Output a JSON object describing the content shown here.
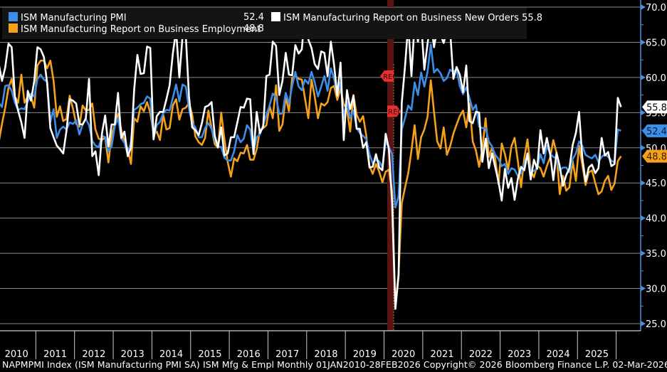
{
  "chart_data": {
    "type": "line",
    "title": "",
    "xlabel": "",
    "ylabel": "",
    "x_start": "2010-01",
    "x_end": "2026-02",
    "frequency": "monthly",
    "ylim": [
      25.0,
      70.0
    ],
    "yticks": [
      "70.0",
      "65.0",
      "60.0",
      "55.0",
      "50.0",
      "45.0",
      "40.0",
      "35.0",
      "30.0",
      "25.0"
    ],
    "xtick_labels": [
      "2010",
      "2011",
      "2012",
      "2013",
      "2014",
      "2015",
      "2016",
      "2017",
      "2018",
      "2019",
      "2020",
      "2021",
      "2022",
      "2023",
      "2024",
      "2025"
    ],
    "grid": true,
    "legend_position": "top-left",
    "recession_band": {
      "start": "2020-02",
      "end": "2020-04",
      "label": "REC"
    },
    "series": [
      {
        "name": "ISM Manufacturing PMI",
        "last_value": "52.4",
        "color": "#3d8ee8",
        "values": [
          56.4,
          55.8,
          58.8,
          58.9,
          58.1,
          56.4,
          55.4,
          55.6,
          55.5,
          56.6,
          57.7,
          57.3,
          59.8,
          60.4,
          59.7,
          59.4,
          53.7,
          55.5,
          51.4,
          52.6,
          53.0,
          52.6,
          53.6,
          53.4,
          53.9,
          51.9,
          53.3,
          54.1,
          53.2,
          51.0,
          50.3,
          50.1,
          51.7,
          51.5,
          49.5,
          50.2,
          53.1,
          54.2,
          51.3,
          50.7,
          49.0,
          50.9,
          55.4,
          55.7,
          56.2,
          56.4,
          57.3,
          57.0,
          51.3,
          53.2,
          53.7,
          54.9,
          55.4,
          55.3,
          57.1,
          59.0,
          56.6,
          59.0,
          58.7,
          55.5,
          53.5,
          52.9,
          51.5,
          51.5,
          52.8,
          53.5,
          52.7,
          51.1,
          50.2,
          50.1,
          48.6,
          48.2,
          48.2,
          49.5,
          51.8,
          50.8,
          51.3,
          53.2,
          52.6,
          49.4,
          51.5,
          51.9,
          53.2,
          54.7,
          56.0,
          57.7,
          57.2,
          54.8,
          54.9,
          57.8,
          56.3,
          58.8,
          60.8,
          58.7,
          58.2,
          59.7,
          59.1,
          60.8,
          59.3,
          57.3,
          58.7,
          60.2,
          58.1,
          61.3,
          59.8,
          57.7,
          59.3,
          54.3,
          56.6,
          54.2,
          55.3,
          52.8,
          52.1,
          51.7,
          51.2,
          49.1,
          47.8,
          48.3,
          48.1,
          47.2,
          50.9,
          50.1,
          49.1,
          41.5,
          43.1,
          52.6,
          54.2,
          56.0,
          55.4,
          59.3,
          57.5,
          60.7,
          58.7,
          60.8,
          64.7,
          60.7,
          61.2,
          60.6,
          59.5,
          59.9,
          61.1,
          60.8,
          61.1,
          58.8,
          57.6,
          58.6,
          57.1,
          55.4,
          56.1,
          53.0,
          52.8,
          52.8,
          50.9,
          50.2,
          49.0,
          48.4,
          47.4,
          47.7,
          46.3,
          47.1,
          46.9,
          46.0,
          46.4,
          47.6,
          49.0,
          46.7,
          46.7,
          47.1,
          49.1,
          47.8,
          50.3,
          49.2,
          48.7,
          48.5,
          46.8,
          47.2,
          47.2,
          46.5,
          48.4,
          49.2,
          50.9,
          50.3,
          49.0,
          48.7,
          48.5,
          49.0,
          48.0,
          48.7,
          49.1,
          48.7,
          48.2,
          47.9,
          52.6,
          52.4
        ]
      },
      {
        "name": "ISM Manufacturing Report on Business New Orders",
        "last_value": "55.8",
        "color": "#ffffff",
        "values": [
          61.9,
          59.5,
          61.4,
          64.8,
          64.3,
          57.3,
          55.3,
          53.6,
          51.4,
          58.1,
          56.7,
          59.5,
          64.3,
          64.0,
          62.9,
          59.2,
          52.8,
          51.5,
          50.3,
          49.8,
          49.2,
          52.4,
          56.9,
          56.7,
          56.3,
          53.4,
          53.3,
          54.2,
          59.8,
          48.8,
          49.5,
          46.1,
          52.0,
          54.6,
          50.2,
          53.3,
          53.3,
          57.8,
          51.4,
          52.3,
          48.8,
          50.0,
          58.3,
          63.2,
          60.5,
          60.6,
          64.4,
          64.2,
          51.2,
          54.5,
          55.1,
          55.1,
          56.9,
          58.9,
          63.4,
          66.7,
          60.0,
          65.8,
          66.0,
          57.3,
          52.9,
          52.5,
          51.8,
          53.5,
          55.8,
          56.0,
          56.5,
          51.7,
          50.1,
          52.9,
          48.9,
          49.2,
          51.5,
          51.5,
          53.6,
          55.8,
          55.7,
          57.0,
          56.9,
          49.1,
          55.1,
          52.1,
          53.0,
          60.2,
          60.4,
          65.1,
          64.5,
          57.5,
          59.5,
          63.5,
          60.4,
          60.3,
          64.6,
          63.4,
          64.0,
          69.4,
          65.4,
          64.2,
          61.9,
          61.2,
          63.7,
          63.5,
          60.2,
          65.1,
          61.8,
          57.4,
          62.1,
          51.1,
          58.2,
          55.5,
          57.4,
          52.7,
          52.7,
          50.0,
          50.8,
          47.2,
          47.3,
          49.1,
          47.2,
          46.8,
          52.0,
          49.8,
          42.2,
          27.1,
          31.8,
          56.4,
          61.5,
          67.6,
          60.2,
          67.9,
          65.1,
          67.9,
          61.1,
          64.8,
          68.0,
          64.3,
          67.0,
          66.0,
          64.9,
          66.7,
          66.7,
          59.8,
          61.5,
          60.4,
          57.9,
          61.7,
          53.8,
          53.5,
          55.1,
          55.0,
          48.0,
          51.3,
          47.1,
          49.2,
          47.2,
          45.2,
          42.5,
          47.0,
          44.3,
          45.7,
          42.6,
          45.6,
          47.3,
          46.8,
          49.2,
          45.5,
          48.3,
          47.0,
          52.5,
          49.2,
          51.4,
          49.1,
          45.4,
          49.3,
          47.4,
          44.6,
          46.1,
          47.1,
          50.4,
          52.1,
          55.1,
          48.6,
          45.2,
          47.2,
          47.6,
          46.4,
          47.1,
          51.4,
          48.9,
          49.4,
          47.4,
          47.7,
          57.1,
          55.8
        ]
      },
      {
        "name": "ISM Manufacturing Report on Business Employment",
        "last_value": "48.8",
        "color": "#f5a11c",
        "values": [
          50.8,
          53.4,
          55.7,
          58.5,
          59.8,
          57.3,
          56.4,
          60.4,
          56.4,
          57.3,
          57.2,
          55.7,
          61.7,
          62.4,
          62.4,
          61.3,
          62.4,
          59.5,
          54.4,
          55.9,
          53.8,
          54.1,
          57.4,
          55.6,
          53.4,
          53.0,
          56.0,
          55.3,
          55.4,
          56.3,
          52.6,
          51.3,
          51.1,
          51.5,
          47.9,
          51.9,
          53.3,
          54.8,
          52.5,
          50.7,
          49.9,
          47.7,
          54.2,
          53.7,
          55.9,
          55.2,
          56.5,
          55.0,
          52.0,
          52.3,
          51.1,
          54.7,
          52.6,
          52.8,
          56.0,
          56.9,
          54.0,
          55.5,
          55.7,
          56.4,
          54.7,
          51.6,
          50.8,
          50.4,
          51.4,
          55.3,
          52.8,
          50.5,
          50.0,
          55.0,
          51.2,
          48.0,
          45.9,
          48.5,
          48.1,
          49.3,
          49.2,
          50.4,
          48.3,
          48.3,
          49.8,
          52.5,
          52.8,
          53.2,
          56.0,
          54.2,
          58.9,
          52.4,
          53.3,
          57.2,
          55.2,
          59.9,
          60.3,
          59.8,
          59.7,
          57.0,
          54.2,
          59.7,
          57.3,
          54.2,
          56.3,
          56.0,
          56.5,
          58.5,
          58.8,
          56.8,
          58.4,
          56.2,
          55.5,
          52.3,
          57.5,
          54.7,
          53.7,
          54.5,
          51.7,
          47.4,
          46.3,
          47.7,
          46.6,
          45.1,
          46.6,
          46.9,
          43.8,
          27.5,
          32.1,
          42.1,
          44.3,
          46.4,
          49.6,
          53.2,
          48.4,
          51.5,
          52.6,
          54.4,
          59.6,
          55.1,
          50.9,
          49.9,
          52.9,
          49.0,
          50.2,
          52.0,
          53.3,
          54.5,
          55.3,
          52.9,
          56.3,
          50.9,
          49.6,
          47.3,
          49.9,
          54.2,
          48.7,
          50.0,
          48.4,
          44.8,
          50.6,
          49.1,
          46.9,
          50.2,
          51.4,
          48.1,
          44.4,
          48.5,
          51.2,
          46.8,
          45.8,
          47.5,
          47.1,
          45.9,
          47.4,
          48.6,
          51.1,
          49.3,
          43.4,
          46.0,
          43.9,
          44.4,
          48.1,
          45.3,
          50.3,
          47.6,
          44.7,
          46.5,
          46.8,
          45.0,
          43.4,
          43.8,
          45.3,
          46.0,
          44.0,
          44.9,
          48.1,
          48.8
        ]
      }
    ]
  },
  "legend": {
    "items": [
      {
        "label": "ISM Manufacturing PMI",
        "value": "52.4"
      },
      {
        "label": "ISM Manufacturing Report on Business Employment",
        "value": "48.8"
      },
      {
        "label": "ISM Manufacturing Report on Business New Orders",
        "value": "55.8"
      }
    ]
  },
  "footer": "NAPMPMI Index (ISM Manufacturing PMI SA) ISM Mfg & Empl Monthly 01JAN2010-28FEB2026 Copyright© 2026 Bloomberg Finance L.P. 02-Mar-2026 10:01:44"
}
